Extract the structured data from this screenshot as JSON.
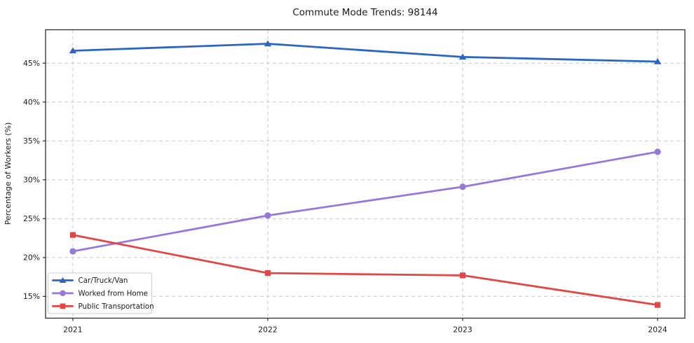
{
  "chart_data": {
    "type": "line",
    "title": "Commute Mode Trends: 98144",
    "xlabel": "",
    "ylabel": "Percentage of Workers (%)",
    "x": [
      2021,
      2022,
      2023,
      2024
    ],
    "x_tick_labels": [
      "2021",
      "2022",
      "2023",
      "2024"
    ],
    "y_ticks": [
      15,
      20,
      25,
      30,
      35,
      40,
      45
    ],
    "y_tick_labels": [
      "15%",
      "20%",
      "25%",
      "30%",
      "35%",
      "40%",
      "45%"
    ],
    "xlim": [
      2020.86,
      2024.14
    ],
    "ylim": [
      12.2,
      49.3
    ],
    "grid": true,
    "grid_style": "dashed",
    "legend_position": "lower left",
    "series": [
      {
        "name": "Car/Truck/Van",
        "marker": "triangle",
        "color": "#2b66c2",
        "values": [
          46.6,
          47.5,
          45.8,
          45.2
        ]
      },
      {
        "name": "Worked from Home",
        "marker": "circle",
        "color": "#9678d9",
        "values": [
          20.8,
          25.4,
          29.1,
          33.6
        ]
      },
      {
        "name": "Public Transportation",
        "marker": "square",
        "color": "#e14747",
        "values": [
          22.9,
          18.0,
          17.7,
          13.9
        ]
      }
    ],
    "colors": {
      "spine": "#2e2e2e",
      "grid": "#c9c9c9",
      "tick_label": "#262626",
      "legend_border": "#cccccc",
      "legend_bg": "#ffffff"
    }
  }
}
